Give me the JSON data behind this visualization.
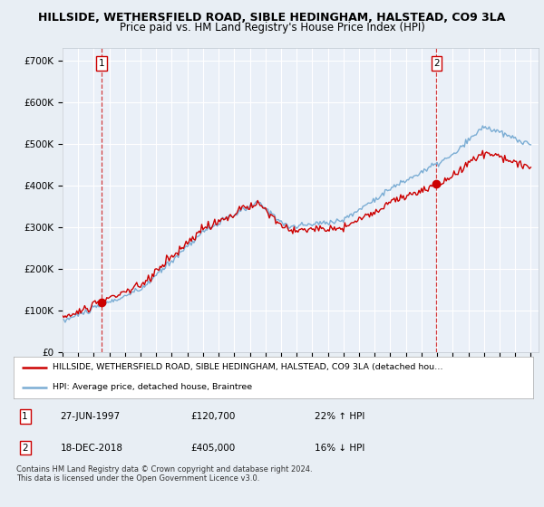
{
  "title": "HILLSIDE, WETHERSFIELD ROAD, SIBLE HEDINGHAM, HALSTEAD, CO9 3LA",
  "subtitle": "Price paid vs. HM Land Registry's House Price Index (HPI)",
  "ylabel_ticks": [
    "£0",
    "£100K",
    "£200K",
    "£300K",
    "£400K",
    "£500K",
    "£600K",
    "£700K"
  ],
  "ytick_vals": [
    0,
    100000,
    200000,
    300000,
    400000,
    500000,
    600000,
    700000
  ],
  "ylim": [
    0,
    730000
  ],
  "xlim_years": [
    1995.0,
    2025.5
  ],
  "xtick_years": [
    1995,
    1996,
    1997,
    1998,
    1999,
    2000,
    2001,
    2002,
    2003,
    2004,
    2005,
    2006,
    2007,
    2008,
    2009,
    2010,
    2011,
    2012,
    2013,
    2014,
    2015,
    2016,
    2017,
    2018,
    2019,
    2020,
    2021,
    2022,
    2023,
    2024,
    2025
  ],
  "marker1_x": 1997.49,
  "marker1_y": 120700,
  "marker2_x": 2018.96,
  "marker2_y": 405000,
  "vline1_x": 1997.49,
  "vline2_x": 2018.96,
  "legend_line1": "HILLSIDE, WETHERSFIELD ROAD, SIBLE HEDINGHAM, HALSTEAD, CO9 3LA (detached hou…",
  "legend_line2": "HPI: Average price, detached house, Braintree",
  "table_rows": [
    {
      "num": "1",
      "date": "27-JUN-1997",
      "price": "£120,700",
      "hpi": "22% ↑ HPI"
    },
    {
      "num": "2",
      "date": "18-DEC-2018",
      "price": "£405,000",
      "hpi": "16% ↓ HPI"
    }
  ],
  "footnote": "Contains HM Land Registry data © Crown copyright and database right 2024.\nThis data is licensed under the Open Government Licence v3.0.",
  "red_color": "#cc0000",
  "blue_color": "#7badd4",
  "bg_color": "#e8eef4",
  "plot_bg": "#eaf0f8",
  "title_fontsize": 9,
  "subtitle_fontsize": 8.5
}
